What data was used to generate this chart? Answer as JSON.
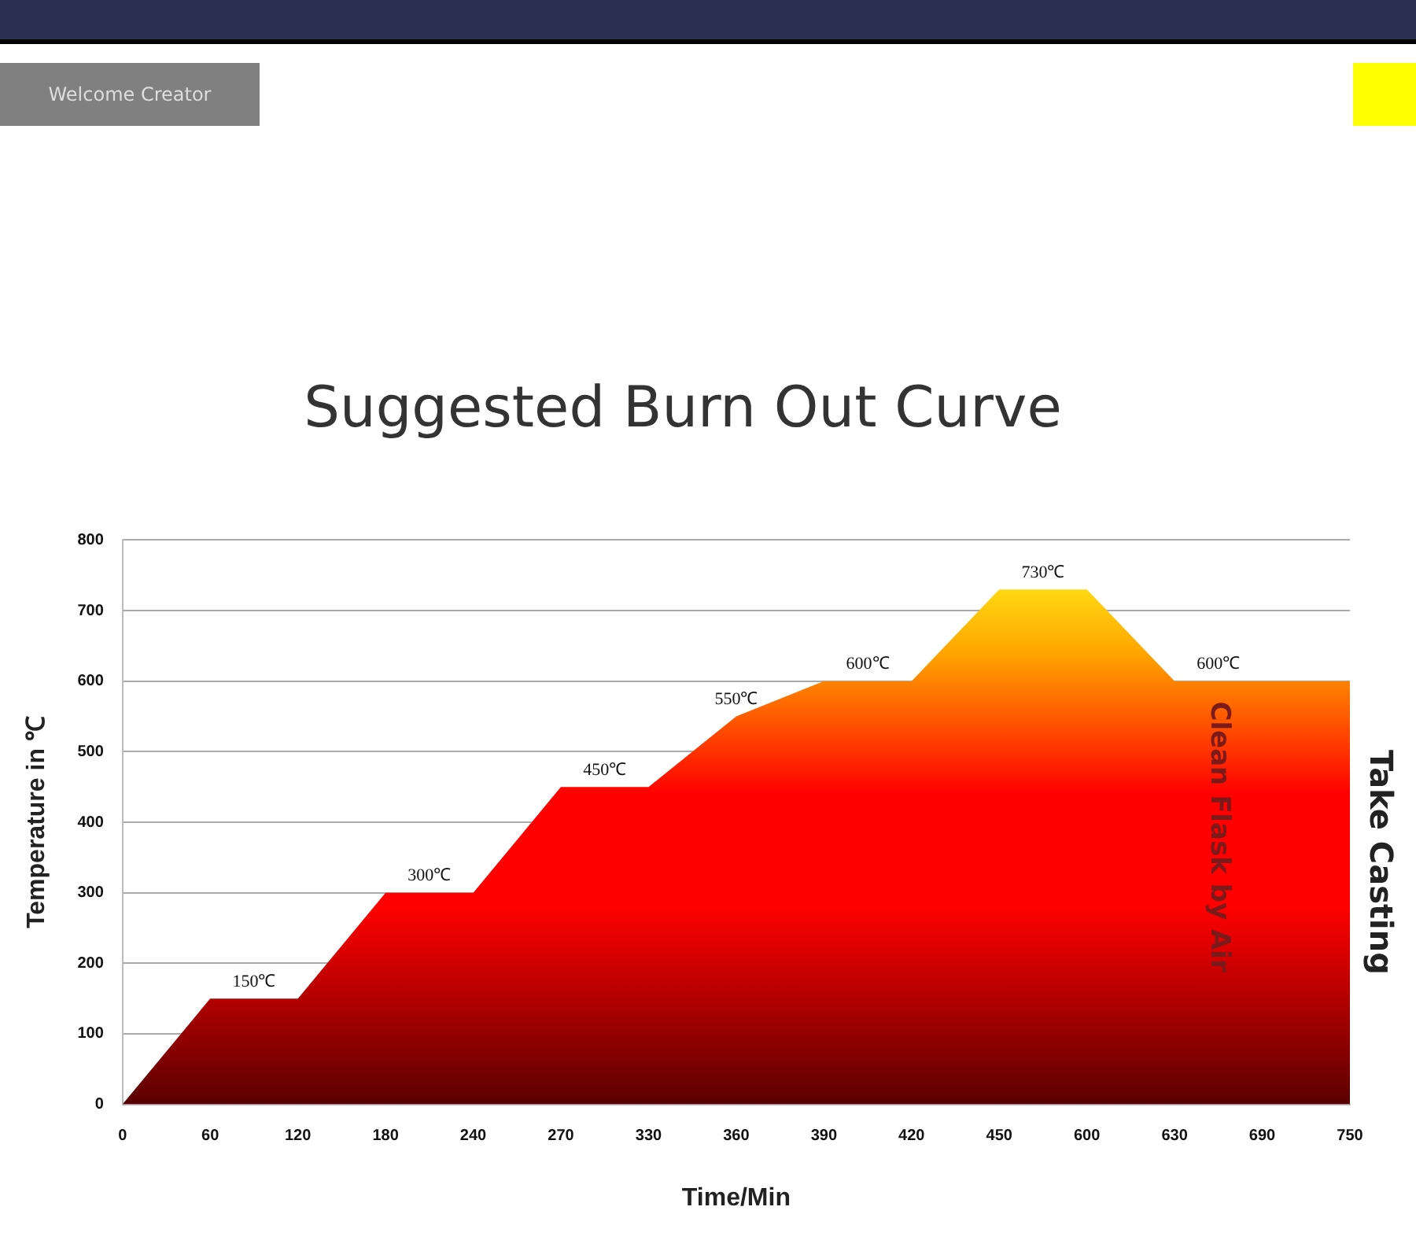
{
  "chart_data": {
    "type": "area",
    "title": "Suggested Burn Out Curve",
    "xlabel": "Time/Min",
    "ylabel": "Temperature in ℃",
    "categories": [
      "0",
      "60",
      "120",
      "180",
      "240",
      "270",
      "330",
      "360",
      "390",
      "420",
      "450",
      "600",
      "630",
      "690",
      "750"
    ],
    "series": [
      {
        "color": "#ff0000",
        "values": [
          0,
          150,
          150,
          300,
          300,
          450,
          450,
          550,
          600,
          600,
          730,
          730,
          600,
          600,
          600
        ],
        "value_labels": [
          null,
          "150℃",
          null,
          "300℃",
          null,
          "450℃",
          null,
          "550℃",
          "600℃",
          null,
          "730℃",
          null,
          "600℃",
          null,
          null
        ]
      }
    ],
    "ylim": [
      0,
      800
    ],
    "yticks": [
      0,
      100,
      200,
      300,
      400,
      500,
      600,
      700,
      800
    ],
    "grid": "y",
    "legend": false,
    "annotations": [
      "Welcome Creator",
      "Clean Flask by Air",
      "Take Casting"
    ]
  }
}
